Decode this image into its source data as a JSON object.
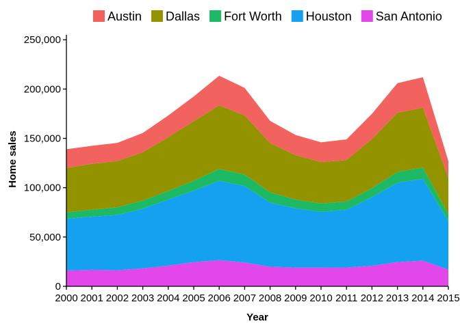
{
  "chart_data": {
    "type": "area",
    "stacked": true,
    "xlabel": "Year",
    "ylabel": "Home sales",
    "ylim": [
      0,
      255000
    ],
    "xlim": [
      2000,
      2015
    ],
    "yticks": [
      0,
      50000,
      100000,
      150000,
      200000,
      250000
    ],
    "ytick_labels": [
      "0",
      "50,000",
      "100,000",
      "150,000",
      "200,000",
      "250,000"
    ],
    "xticks": [
      2000,
      2001,
      2002,
      2003,
      2004,
      2005,
      2006,
      2007,
      2008,
      2009,
      2010,
      2011,
      2012,
      2013,
      2014,
      2015
    ],
    "xtick_labels": [
      "2000",
      "2001",
      "2002",
      "2003",
      "2004",
      "2005",
      "2006",
      "2007",
      "2008",
      "2009",
      "2010",
      "2011",
      "2012",
      "2013",
      "2014",
      "2015"
    ],
    "legend_position": "top",
    "x": [
      2000,
      2001,
      2002,
      2003,
      2004,
      2005,
      2006,
      2007,
      2008,
      2009,
      2010,
      2011,
      2012,
      2013,
      2014,
      2015
    ],
    "series": [
      {
        "name": "San Antonio",
        "color": "#E247E9",
        "values": [
          16000,
          16700,
          16300,
          18200,
          21000,
          24500,
          26500,
          24200,
          19800,
          19000,
          19000,
          19100,
          20800,
          24500,
          26000,
          17000
        ]
      },
      {
        "name": "Houston",
        "color": "#14A1EF",
        "values": [
          52500,
          54000,
          56000,
          60500,
          67000,
          72500,
          80500,
          77500,
          65000,
          60000,
          56500,
          58500,
          69500,
          80500,
          83000,
          49000
        ]
      },
      {
        "name": "Fort Worth",
        "color": "#1DB964",
        "values": [
          6500,
          7000,
          7800,
          8300,
          8700,
          10000,
          12000,
          11500,
          10500,
          9000,
          8500,
          8400,
          9200,
          11000,
          11500,
          7000
        ]
      },
      {
        "name": "Dallas",
        "color": "#939300",
        "values": [
          45000,
          46500,
          47000,
          49000,
          54500,
          60500,
          64500,
          60000,
          50000,
          45000,
          42000,
          42000,
          50000,
          60000,
          60500,
          37000
        ]
      },
      {
        "name": "Austin",
        "color": "#F2625F",
        "values": [
          19000,
          18300,
          18300,
          19500,
          22000,
          25000,
          30000,
          28000,
          22500,
          20500,
          20000,
          21000,
          25500,
          30000,
          31000,
          17000
        ]
      }
    ],
    "legend_order": [
      "Austin",
      "Dallas",
      "Fort Worth",
      "Houston",
      "San Antonio"
    ]
  }
}
